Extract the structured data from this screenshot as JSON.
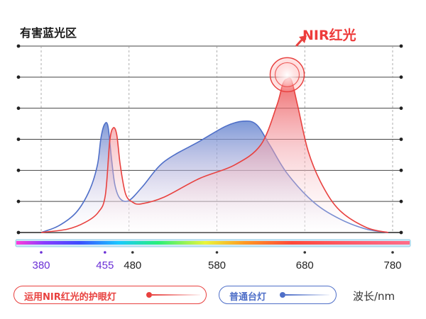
{
  "chart_data": {
    "type": "area",
    "title": "有害蓝光区",
    "annotation": "NIR红光",
    "xlabel": "波长/nm",
    "x_ticks": [
      380,
      455,
      480,
      580,
      680,
      780
    ],
    "xlim": [
      360,
      790
    ],
    "ylim": [
      0,
      100
    ],
    "grid": true,
    "y_axis_labels": false,
    "legend_position": "bottom",
    "series": [
      {
        "name": "运用NIR红光的护眼灯",
        "color": "#e8413f",
        "points": [
          [
            380,
            0
          ],
          [
            410,
            2
          ],
          [
            430,
            6
          ],
          [
            445,
            12
          ],
          [
            453,
            22
          ],
          [
            458,
            54
          ],
          [
            462,
            62
          ],
          [
            466,
            58
          ],
          [
            470,
            40
          ],
          [
            476,
            23
          ],
          [
            484,
            18
          ],
          [
            494,
            17
          ],
          [
            520,
            21
          ],
          [
            560,
            32
          ],
          [
            600,
            40
          ],
          [
            630,
            52
          ],
          [
            648,
            75
          ],
          [
            655,
            88
          ],
          [
            660,
            91
          ],
          [
            665,
            90
          ],
          [
            672,
            75
          ],
          [
            684,
            48
          ],
          [
            700,
            28
          ],
          [
            720,
            13
          ],
          [
            750,
            3
          ],
          [
            775,
            0
          ]
        ]
      },
      {
        "name": "普通台灯",
        "color": "#4f6fc8",
        "points": [
          [
            380,
            0
          ],
          [
            400,
            4
          ],
          [
            420,
            12
          ],
          [
            435,
            25
          ],
          [
            444,
            40
          ],
          [
            448,
            56
          ],
          [
            452,
            64
          ],
          [
            456,
            63
          ],
          [
            460,
            44
          ],
          [
            464,
            28
          ],
          [
            470,
            20
          ],
          [
            480,
            19
          ],
          [
            495,
            27
          ],
          [
            520,
            42
          ],
          [
            560,
            54
          ],
          [
            590,
            63
          ],
          [
            610,
            66
          ],
          [
            625,
            64
          ],
          [
            640,
            52
          ],
          [
            660,
            35
          ],
          [
            690,
            18
          ],
          [
            720,
            8
          ],
          [
            750,
            2
          ],
          [
            775,
            0
          ]
        ]
      }
    ],
    "highlight_x": [
      380,
      455
    ],
    "spectrum_bar": true
  },
  "colors": {
    "nir": "#e8413f",
    "normal": "#4f6fc8",
    "blue_tick": "#6a2fd6",
    "grid": "#9a9a9a",
    "axis": "#222222"
  }
}
